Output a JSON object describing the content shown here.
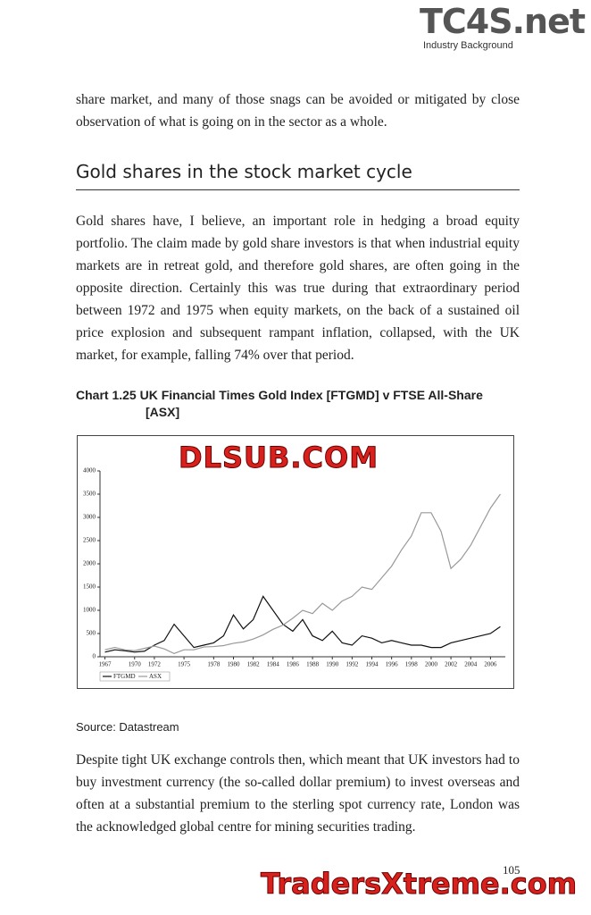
{
  "header": {
    "brand": "TC4S.net",
    "section": "Industry Background"
  },
  "paragraphs": [
    "share market, and many of those snags can be avoided or mitigated by close observation of what is going on in the sector as a whole.",
    "Gold shares have, I believe, an important role in hedging a broad equity portfolio. The claim made by gold share investors is that when industrial equity markets are in retreat gold, and therefore gold shares, are often going in the opposite direction. Certainly this was true during that extraordinary period between 1972 and 1975 when equity markets, on the back of a sustained oil price explosion and subsequent rampant inflation, collapsed, with the UK market, for example, falling 74% over that period.",
    "Despite tight UK exchange controls then, which meant that UK investors had to buy investment currency (the so-called dollar premium) to invest overseas and often at a substantial premium to the sterling spot currency rate, London was the acknowledged global centre for mining securities trading."
  ],
  "heading": "Gold shares in the stock market cycle",
  "source": "Source: Datastream",
  "page_number": "105",
  "watermarks": [
    "DLSUB.COM",
    "TradersXtreme.com"
  ],
  "chart_data": {
    "type": "line",
    "title": "Chart 1.25 UK Financial Times Gold Index [FTGMD] v FTSE All-Share [ASX]",
    "x": [
      1967,
      1968,
      1969,
      1970,
      1971,
      1972,
      1973,
      1974,
      1975,
      1976,
      1977,
      1978,
      1979,
      1980,
      1981,
      1982,
      1983,
      1984,
      1985,
      1986,
      1987,
      1988,
      1989,
      1990,
      1991,
      1992,
      1993,
      1994,
      1995,
      1996,
      1997,
      1998,
      1999,
      2000,
      2001,
      2002,
      2003,
      2004,
      2005,
      2006,
      2007
    ],
    "series": [
      {
        "name": "FTGMD",
        "color": "#111111",
        "values": [
          100,
          150,
          130,
          100,
          120,
          250,
          350,
          700,
          450,
          200,
          250,
          300,
          450,
          900,
          600,
          800,
          1300,
          1000,
          700,
          550,
          800,
          450,
          350,
          550,
          300,
          250,
          450,
          400,
          300,
          350,
          300,
          250,
          250,
          200,
          200,
          300,
          350,
          400,
          450,
          500,
          650
        ]
      },
      {
        "name": "ASX",
        "color": "#999999",
        "values": [
          150,
          200,
          150,
          130,
          180,
          230,
          170,
          70,
          150,
          150,
          210,
          220,
          240,
          290,
          320,
          380,
          470,
          590,
          680,
          830,
          1000,
          930,
          1150,
          1000,
          1200,
          1300,
          1500,
          1450,
          1700,
          1950,
          2300,
          2600,
          3100,
          3100,
          2700,
          1900,
          2100,
          2400,
          2800,
          3200,
          3500
        ]
      }
    ],
    "xlim": [
      1966.5,
      2007.5
    ],
    "xticks": [
      1967,
      1970,
      1972,
      1975,
      1978,
      1980,
      1982,
      1984,
      1986,
      1988,
      1990,
      1992,
      1994,
      1996,
      1998,
      2000,
      2002,
      2004,
      2006
    ],
    "ylim": [
      0,
      4000
    ],
    "yticks": [
      0,
      500,
      1000,
      1500,
      2000,
      2500,
      3000,
      3500,
      4000
    ],
    "legend": "lower left"
  }
}
